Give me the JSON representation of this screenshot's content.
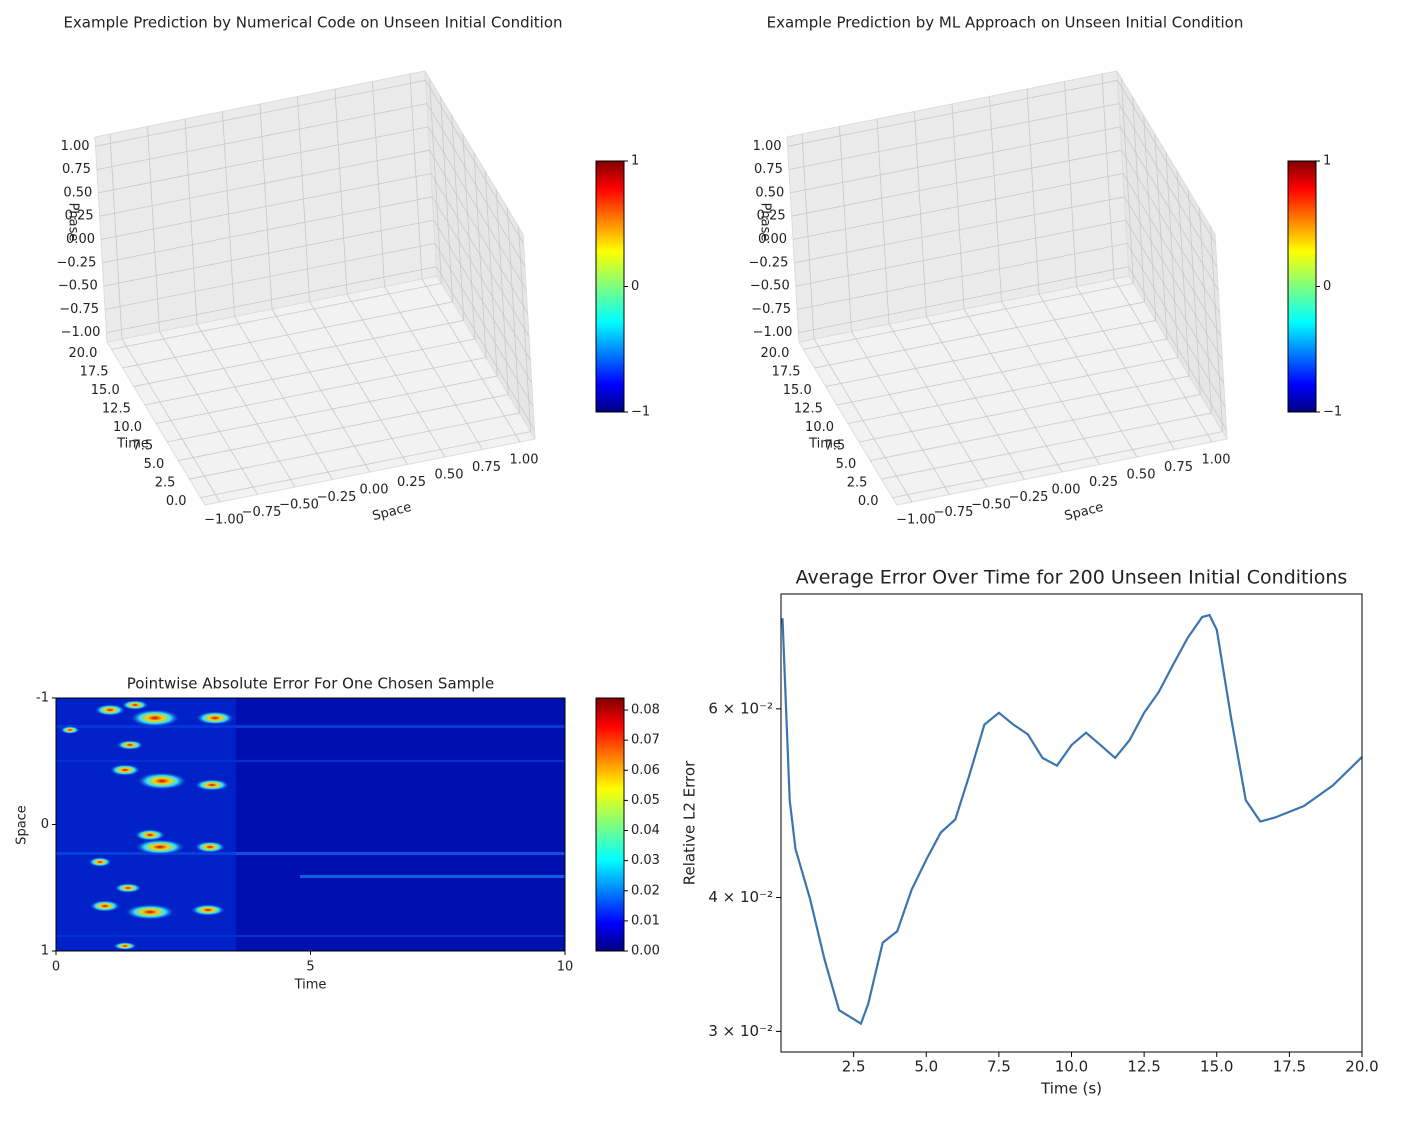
{
  "chart_data": [
    {
      "type": "surface3d",
      "title": "Example Prediction by Numerical Code on Unseen Initial Condition",
      "xlabel": "Space",
      "ylabel": "Time",
      "zlabel": "Phase",
      "colormap": "jet",
      "xlim": [
        -1.1,
        1.1
      ],
      "ylim": [
        -1,
        21
      ],
      "zlim": [
        -1.1,
        1.1
      ],
      "xticks": [
        {
          "value": -1,
          "label": "−1.00"
        },
        {
          "value": -0.75,
          "label": "−0.75"
        },
        {
          "value": -0.5,
          "label": "−0.50"
        },
        {
          "value": -0.25,
          "label": "−0.25"
        },
        {
          "value": 0,
          "label": "0.00"
        },
        {
          "value": 0.25,
          "label": "0.25"
        },
        {
          "value": 0.5,
          "label": "0.50"
        },
        {
          "value": 0.75,
          "label": "0.75"
        },
        {
          "value": 1,
          "label": "1.00"
        }
      ],
      "yticks": [
        {
          "value": 0,
          "label": "0.0"
        },
        2.5,
        {
          "value": 5,
          "label": "5.0"
        },
        7.5,
        {
          "value": 10,
          "label": "10.0"
        },
        12.5,
        {
          "value": 15,
          "label": "15.0"
        },
        17.5,
        {
          "value": 20,
          "label": "20.0"
        }
      ],
      "zticks": [
        {
          "value": -1,
          "label": "−1.00"
        },
        {
          "value": -0.75,
          "label": "−0.75"
        },
        {
          "value": -0.5,
          "label": "−0.50"
        },
        {
          "value": -0.25,
          "label": "−0.25"
        },
        {
          "value": 0,
          "label": "0.00"
        },
        {
          "value": 0.25,
          "label": "0.25"
        },
        {
          "value": 0.5,
          "label": "0.50"
        },
        {
          "value": 0.75,
          "label": "0.75"
        },
        {
          "value": 1,
          "label": "1.00"
        }
      ],
      "clim": [
        -1,
        1
      ],
      "cticks": [
        {
          "value": -1,
          "label": "−1"
        },
        0,
        1
      ]
    },
    {
      "type": "surface3d",
      "title": "Example Prediction by ML Approach on Unseen Initial Condition",
      "xlabel": "Space",
      "ylabel": "Time",
      "zlabel": "Phase",
      "colormap": "jet",
      "xlim": [
        -1.1,
        1.1
      ],
      "ylim": [
        -1,
        21
      ],
      "zlim": [
        -1.1,
        1.1
      ],
      "xticks": [
        {
          "value": -1,
          "label": "−1.00"
        },
        {
          "value": -0.75,
          "label": "−0.75"
        },
        {
          "value": -0.5,
          "label": "−0.50"
        },
        {
          "value": -0.25,
          "label": "−0.25"
        },
        {
          "value": 0,
          "label": "0.00"
        },
        {
          "value": 0.25,
          "label": "0.25"
        },
        {
          "value": 0.5,
          "label": "0.50"
        },
        {
          "value": 0.75,
          "label": "0.75"
        },
        {
          "value": 1,
          "label": "1.00"
        }
      ],
      "yticks": [
        {
          "value": 0,
          "label": "0.0"
        },
        2.5,
        {
          "value": 5,
          "label": "5.0"
        },
        7.5,
        {
          "value": 10,
          "label": "10.0"
        },
        12.5,
        {
          "value": 15,
          "label": "15.0"
        },
        17.5,
        {
          "value": 20,
          "label": "20.0"
        }
      ],
      "zticks": [
        {
          "value": -1,
          "label": "−1.00"
        },
        {
          "value": -0.75,
          "label": "−0.75"
        },
        {
          "value": -0.5,
          "label": "−0.50"
        },
        {
          "value": -0.25,
          "label": "−0.25"
        },
        {
          "value": 0,
          "label": "0.00"
        },
        {
          "value": 0.25,
          "label": "0.25"
        },
        {
          "value": 0.5,
          "label": "0.50"
        },
        {
          "value": 0.75,
          "label": "0.75"
        },
        {
          "value": 1,
          "label": "1.00"
        }
      ],
      "clim": [
        -1,
        1
      ],
      "cticks": [
        {
          "value": -1,
          "label": "−1"
        },
        0,
        1
      ]
    },
    {
      "type": "heatmap",
      "title": "Pointwise Absolute Error For One Chosen Sample",
      "xlabel": "Time",
      "ylabel": "Space",
      "colormap": "jet",
      "xlim": [
        0,
        10
      ],
      "xticks": [
        0,
        5,
        10
      ],
      "ylim": [
        1,
        -1
      ],
      "yticks": [
        -1,
        0,
        1
      ],
      "clim": [
        0,
        0.084
      ],
      "cticks": [
        {
          "value": 0,
          "label": "0.00"
        },
        0.01,
        0.02,
        0.03,
        0.04,
        0.05,
        0.06,
        0.07,
        0.08
      ]
    },
    {
      "type": "line",
      "title": "Average Error Over Time for 200 Unseen Initial Conditions",
      "xlabel": "Time (s)",
      "ylabel": "Relative L2 Error",
      "ylog": true,
      "color": "#3b75af",
      "xlim": [
        0,
        20
      ],
      "ylim": [
        0.0287,
        0.0768
      ],
      "xticks": [
        2.5,
        {
          "value": 5,
          "label": "5.0"
        },
        7.5,
        {
          "value": 10,
          "label": "10.0"
        },
        12.5,
        {
          "value": 15,
          "label": "15.0"
        },
        17.5,
        {
          "value": 20,
          "label": "20.0"
        }
      ],
      "yticks": [
        {
          "value": 0.03,
          "label": "3 × 10⁻²"
        },
        {
          "value": 0.04,
          "label": "4 × 10⁻²"
        },
        {
          "value": 0.06,
          "label": "6 × 10⁻²"
        }
      ],
      "x": [
        0.05,
        0.3,
        0.5,
        1.0,
        1.5,
        2.0,
        2.5,
        2.75,
        3.0,
        3.5,
        4.0,
        4.5,
        5.0,
        5.5,
        6.0,
        6.5,
        7.0,
        7.5,
        8.0,
        8.5,
        9.0,
        9.5,
        10.0,
        10.5,
        11.0,
        11.5,
        12.0,
        12.5,
        13.0,
        13.5,
        14.0,
        14.5,
        14.75,
        15.0,
        15.5,
        16.0,
        16.5,
        17.0,
        18.0,
        19.0,
        20.0
      ],
      "values": [
        0.0729,
        0.0493,
        0.0444,
        0.0399,
        0.035,
        0.0314,
        0.0308,
        0.0305,
        0.0318,
        0.0363,
        0.0372,
        0.0407,
        0.0434,
        0.046,
        0.0473,
        0.0522,
        0.058,
        0.0595,
        0.058,
        0.0568,
        0.054,
        0.0531,
        0.0555,
        0.057,
        0.0555,
        0.054,
        0.0561,
        0.0595,
        0.0622,
        0.066,
        0.0699,
        0.0731,
        0.0734,
        0.0711,
        0.0587,
        0.0493,
        0.0471,
        0.0475,
        0.0487,
        0.0509,
        0.0541
      ]
    }
  ]
}
